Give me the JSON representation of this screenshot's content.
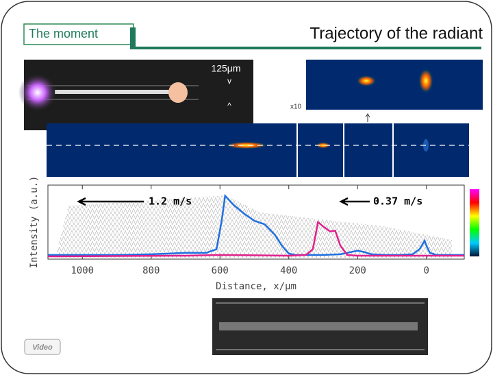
{
  "header": {
    "tag": "The moment",
    "title": "Trajectory of the radiant"
  },
  "images": {
    "scale": "125μm",
    "top_mark": "v",
    "bottom_mark": "^",
    "magnification": "x10"
  },
  "button": {
    "label": "Video"
  },
  "chart_data": {
    "type": "line",
    "xlabel": "Distance, x/μm",
    "ylabel": "Intensity (a.u.)",
    "annotations": [
      "1.2 m/s",
      "0.37 m/s"
    ],
    "xlim": [
      1100,
      -110
    ],
    "xticks": [
      1000,
      800,
      600,
      400,
      200,
      0
    ],
    "ylim": [
      0,
      1
    ],
    "series": [
      {
        "color": "#1f6fe0",
        "x": [
          1100,
          900,
          800,
          700,
          640,
          610,
          595,
          585,
          560,
          530,
          500,
          470,
          440,
          420,
          400,
          380,
          350,
          300,
          250,
          200,
          180,
          160,
          120,
          80,
          40,
          20,
          5,
          0,
          -10,
          -30,
          -110
        ],
        "values": [
          0.02,
          0.02,
          0.03,
          0.05,
          0.05,
          0.1,
          0.5,
          0.85,
          0.72,
          0.6,
          0.5,
          0.45,
          0.3,
          0.15,
          0.04,
          0.02,
          0.02,
          0.02,
          0.03,
          0.08,
          0.06,
          0.03,
          0.02,
          0.02,
          0.03,
          0.1,
          0.22,
          0.15,
          0.05,
          0.02,
          0.02
        ]
      },
      {
        "color": "#e0208c",
        "x": [
          1100,
          700,
          600,
          400,
          350,
          330,
          315,
          300,
          280,
          265,
          250,
          230,
          200,
          100,
          0,
          -110
        ],
        "values": [
          0.0,
          0.01,
          0.02,
          0.01,
          0.02,
          0.1,
          0.48,
          0.42,
          0.35,
          0.36,
          0.15,
          0.02,
          0.01,
          0.01,
          0.01,
          0.01
        ]
      }
    ]
  }
}
